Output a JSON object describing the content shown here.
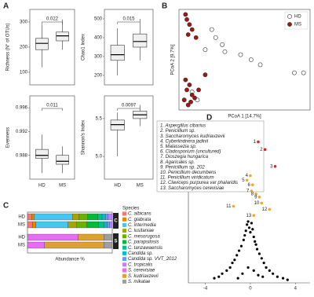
{
  "chart_data": [
    {
      "type": "box",
      "panel": "A",
      "ylabel": "Richness (N° of OTUs)",
      "pvalue": "0.022",
      "ylim": [
        50,
        350
      ],
      "yticks": [
        100,
        200,
        300
      ],
      "color": "#f0f0f0",
      "boxes": [
        {
          "low": 120,
          "q1": 190,
          "median": 215,
          "q3": 235,
          "high": 290
        },
        {
          "low": 190,
          "q1": 225,
          "median": 245,
          "q3": 260,
          "high": 310
        }
      ]
    },
    {
      "type": "box",
      "ylabel": "Chao1 Index",
      "pvalue": "0.015",
      "ylim": [
        150,
        550
      ],
      "yticks": [
        200,
        300,
        400,
        500
      ],
      "color": "#f0f0f0",
      "boxes": [
        {
          "low": 200,
          "q1": 280,
          "median": 310,
          "q3": 360,
          "high": 450
        },
        {
          "low": 280,
          "q1": 350,
          "median": 380,
          "q3": 420,
          "high": 500
        }
      ]
    },
    {
      "type": "box",
      "ylabel": "Evenness",
      "pvalue": "0.011",
      "ylim": [
        0.984,
        0.998
      ],
      "yticks": [
        0.988,
        0.992,
        0.996
      ],
      "color": "#f0f0f0",
      "categories": [
        "HD",
        "MS"
      ],
      "boxes": [
        {
          "low": 0.985,
          "q1": 0.9875,
          "median": 0.988,
          "q3": 0.989,
          "high": 0.9915
        },
        {
          "low": 0.985,
          "q1": 0.9865,
          "median": 0.987,
          "q3": 0.988,
          "high": 0.9895
        }
      ]
    },
    {
      "type": "box",
      "ylabel": "Shannon's Index",
      "pvalue": "0.0097",
      "ylim": [
        4.7,
        5.8
      ],
      "yticks": [
        {
          "value": 5,
          "label": "5.0"
        },
        5.5
      ],
      "color": "#f0f0f0",
      "categories": [
        "HD",
        "MS"
      ],
      "boxes": [
        {
          "low": 5.0,
          "q1": 5.35,
          "median": 5.42,
          "q3": 5.48,
          "high": 5.58
        },
        {
          "low": 5.4,
          "q1": 5.5,
          "median": 5.55,
          "q3": 5.6,
          "high": 5.68
        }
      ]
    },
    {
      "type": "scatter",
      "panel": "B",
      "xlabel": "PCoA 1 [14.7%]",
      "ylabel": "PCoA 2 [9.7%]",
      "xlim": [
        0,
        1
      ],
      "ylim": [
        0,
        1
      ],
      "edgecolor": "#333333",
      "series": [
        {
          "name": "HD",
          "color": "#ffffff",
          "x": [
            0.95,
            0.88,
            0.62,
            0.55,
            0.47,
            0.33,
            0.28,
            0.2,
            0.35,
            0.25,
            0.1,
            0.14
          ],
          "y": [
            0.37,
            0.37,
            0.45,
            0.5,
            0.55,
            0.65,
            0.72,
            0.6,
            0.58,
            0.8,
            0.18,
            0.1
          ]
        },
        {
          "name": "MS",
          "color": "#a31515",
          "x": [
            0.05,
            0.06,
            0.08,
            0.1,
            0.07,
            0.13,
            0.05,
            0.08,
            0.06,
            0.1,
            0.04,
            0.09,
            0.12,
            0.15,
            0.07,
            0.2
          ],
          "y": [
            0.95,
            0.9,
            0.85,
            0.8,
            0.75,
            0.72,
            0.3,
            0.25,
            0.2,
            0.15,
            0.1,
            0.08,
            0.12,
            0.2,
            0.05,
            0.35
          ]
        }
      ]
    },
    {
      "type": "barh",
      "panel": "C",
      "xlabel": "Abundance %",
      "legend_title": "Species",
      "xlim": [
        0,
        100
      ],
      "categories": [
        "HD",
        "MS",
        "HD",
        "MS"
      ],
      "facet_labels": [
        "C",
        "S"
      ],
      "series": [
        {
          "name": "C. albicans",
          "color": "#f8766d",
          "values": [
            5,
            6,
            0,
            0
          ]
        },
        {
          "name": "C. glabrata",
          "color": "#e58700",
          "values": [
            3,
            4,
            0,
            0
          ]
        },
        {
          "name": "C. intermedia",
          "color": "#46c6f0",
          "values": [
            45,
            38,
            0,
            0
          ]
        },
        {
          "name": "C. lusitaniae",
          "color": "#a3a500",
          "values": [
            8,
            10,
            0,
            0
          ]
        },
        {
          "name": "C. mesorugosa",
          "color": "#6bb100",
          "values": [
            10,
            12,
            0,
            0
          ]
        },
        {
          "name": "C. parapsilosis",
          "color": "#00ba38",
          "values": [
            12,
            14,
            0,
            0
          ]
        },
        {
          "name": "C. tanzawaensis",
          "color": "#00c08b",
          "values": [
            5,
            6,
            0,
            0
          ]
        },
        {
          "name": "Candida sp.",
          "color": "#00bfc4",
          "values": [
            4,
            4,
            0,
            0
          ]
        },
        {
          "name": "Candida sp. VVT_2012",
          "color": "#619cff",
          "values": [
            3,
            3,
            0,
            0
          ]
        },
        {
          "name": "C. tropicalis",
          "color": "#b983ff",
          "values": [
            5,
            3,
            0,
            0
          ]
        },
        {
          "name": "S. cerevisiae",
          "color": "#e76bf3",
          "values": [
            0,
            0,
            60,
            20
          ]
        },
        {
          "name": "S. kudriavzevii",
          "color": "#e0a030",
          "values": [
            0,
            0,
            30,
            70
          ]
        },
        {
          "name": "S. mikatae",
          "color": "#9e9e9e",
          "values": [
            0,
            0,
            10,
            10
          ]
        }
      ]
    },
    {
      "type": "volcano",
      "panel": "D",
      "xlim": [
        -5.5,
        5.3
      ],
      "ylim": [
        0,
        10
      ],
      "xticks": [
        -4,
        0,
        4
      ],
      "color": "#000000",
      "annotations": [
        "1. Aspergillus cibarius",
        "2. Penicillium sp.",
        "3. Saccharomyces kudriavzevii",
        "4. Cyberlindnera jadinii",
        "5. Malassezia sp.",
        "6. Cladosporium (uncultured)",
        "7. Dioszegia hungarica",
        "8. Agaricales sp.",
        "9. Penicillium sp. 202",
        "10. Penicillium decumbens",
        "11. Penicillium viridicatum",
        "12. Claviceps purpurea var phalaridis",
        "13. Saccharomyces cerevisiae"
      ],
      "x": [
        -3.2,
        -2.8,
        -2.5,
        -2.1,
        -1.8,
        -1.6,
        -1.4,
        -1.2,
        -1.0,
        -0.8,
        -0.6,
        -0.5,
        -0.4,
        -0.3,
        -0.2,
        -0.1,
        0,
        0.1,
        0.2,
        0.3,
        0.4,
        0.5,
        0.6,
        0.8,
        1.0,
        1.2,
        1.4,
        1.7,
        2.0,
        2.4,
        2.9,
        3.3,
        -0.2,
        0.3,
        0.7,
        -0.7,
        1.1,
        -1.1
      ],
      "y": [
        0.3,
        0.4,
        0.6,
        0.8,
        1.0,
        1.3,
        1.5,
        1.8,
        2.1,
        2.4,
        2.8,
        3.1,
        3.4,
        3.8,
        4.0,
        3.6,
        3.3,
        3.9,
        3.5,
        3.0,
        2.7,
        2.5,
        2.2,
        1.9,
        1.6,
        1.3,
        1.0,
        0.8,
        0.6,
        0.4,
        0.3,
        0.2,
        1.0,
        0.8,
        0.5,
        0.6,
        0.4,
        0.3
      ],
      "highlight": {
        "labels": [
          "1",
          "2",
          "3",
          "4",
          "5",
          "6",
          "7",
          "8",
          "9",
          "10",
          "11",
          "12",
          "13"
        ],
        "colors": [
          "#d62728",
          "#d62728",
          "#d62728",
          "#f5a623",
          "#f5a623",
          "#f5a623",
          "#f5a623",
          "#f5a623",
          "#f5a623",
          "#f5a623",
          "#f5a623",
          "#f5a623",
          "#f5a623"
        ],
        "x": [
          0.7,
          1.3,
          2.2,
          0.0,
          -0.3,
          0.2,
          0.1,
          0.5,
          0.8,
          1.0,
          -1.5,
          1.7,
          0.3
        ],
        "y": [
          9.2,
          8.7,
          7.6,
          7.0,
          6.7,
          6.4,
          6.0,
          5.8,
          5.6,
          5.2,
          5.0,
          4.8,
          4.4
        ]
      }
    }
  ]
}
